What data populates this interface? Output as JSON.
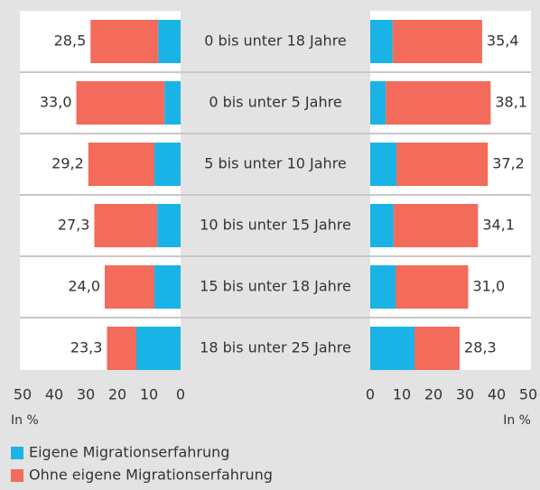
{
  "chart_data": {
    "type": "butterfly",
    "categories": [
      "0 bis unter 18 Jahre",
      "0 bis unter 5 Jahre",
      "5 bis unter 10 Jahre",
      "10 bis unter 15 Jahre",
      "15 bis unter 18 Jahre",
      "18 bis unter 25 Jahre"
    ],
    "series": [
      {
        "name": "Eigene Migrationserfahrung",
        "color": "#1ab3e6"
      },
      {
        "name": "Ohne eigene Migrationserfahrung",
        "color": "#f26b5b"
      }
    ],
    "panels": [
      {
        "direction": "left",
        "xlim": [
          0,
          50
        ],
        "xticks": [
          0,
          10,
          20,
          30,
          40,
          50
        ],
        "xlabel": "In %",
        "series": [
          {
            "values": [
              7.1,
              5.1,
              8.3,
              7.4,
              8.3,
              14.0
            ]
          },
          {
            "values": [
              21.4,
              27.9,
              20.9,
              19.9,
              15.7,
              9.3
            ]
          }
        ],
        "totals": [
          28.5,
          33.0,
          29.2,
          27.3,
          24.0,
          23.3
        ],
        "value_labels": [
          "28,5",
          "33,0",
          "29,2",
          "27,3",
          "24,0",
          "23,3"
        ]
      },
      {
        "direction": "right",
        "xlim": [
          0,
          50
        ],
        "xticks": [
          0,
          10,
          20,
          30,
          40,
          50
        ],
        "xlabel": "In %",
        "series": [
          {
            "values": [
              7.1,
              4.9,
              8.3,
              7.4,
              8.0,
              14.0
            ]
          },
          {
            "values": [
              28.3,
              33.2,
              28.9,
              26.7,
              23.0,
              14.3
            ]
          }
        ],
        "totals": [
          35.4,
          38.1,
          37.2,
          34.1,
          31.0,
          28.3
        ],
        "value_labels": [
          "35,4",
          "38,1",
          "37,2",
          "34,1",
          "31,0",
          "28,3"
        ]
      }
    ]
  }
}
